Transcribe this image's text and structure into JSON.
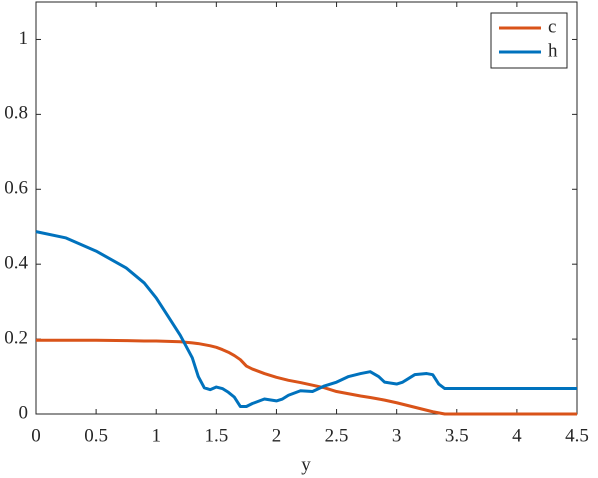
{
  "chart_data": {
    "type": "line",
    "x_label": "y",
    "x": [
      0,
      0.25,
      0.5,
      0.75,
      0.9,
      1.0,
      1.1,
      1.2,
      1.3,
      1.35,
      1.4,
      1.45,
      1.5,
      1.55,
      1.6,
      1.65,
      1.7,
      1.75,
      1.8,
      1.9,
      2.0,
      2.05,
      2.1,
      2.2,
      2.3,
      2.4,
      2.5,
      2.6,
      2.7,
      2.78,
      2.85,
      2.9,
      3.0,
      3.05,
      3.15,
      3.25,
      3.3,
      3.35,
      3.4,
      3.5,
      4.5
    ],
    "series": [
      {
        "name": "c",
        "color": "#d95319",
        "values": [
          0.197,
          0.197,
          0.197,
          0.196,
          0.195,
          0.195,
          0.194,
          0.193,
          0.19,
          0.188,
          0.185,
          0.182,
          0.178,
          0.172,
          0.165,
          0.156,
          0.145,
          0.128,
          0.12,
          0.108,
          0.098,
          0.094,
          0.09,
          0.084,
          0.077,
          0.07,
          0.06,
          0.054,
          0.048,
          0.044,
          0.04,
          0.037,
          0.03,
          0.026,
          0.018,
          0.01,
          0.006,
          0.003,
          0,
          0,
          0
        ]
      },
      {
        "name": "h",
        "color": "#0072bd",
        "values": [
          0.487,
          0.47,
          0.435,
          0.39,
          0.35,
          0.31,
          0.26,
          0.21,
          0.15,
          0.1,
          0.07,
          0.065,
          0.072,
          0.068,
          0.058,
          0.045,
          0.02,
          0.02,
          0.028,
          0.04,
          0.035,
          0.04,
          0.05,
          0.062,
          0.06,
          0.075,
          0.085,
          0.1,
          0.108,
          0.113,
          0.1,
          0.085,
          0.08,
          0.085,
          0.105,
          0.108,
          0.105,
          0.08,
          0.068,
          0.068,
          0.068
        ]
      }
    ],
    "xlim": [
      0,
      4.5
    ],
    "ylim": [
      0,
      1.1
    ],
    "xticks": [
      0,
      0.5,
      1,
      1.5,
      2,
      2.5,
      3,
      3.5,
      4,
      4.5
    ],
    "yticks": [
      0,
      0.2,
      0.4,
      0.6,
      0.8,
      1
    ],
    "legend": "top-right"
  }
}
